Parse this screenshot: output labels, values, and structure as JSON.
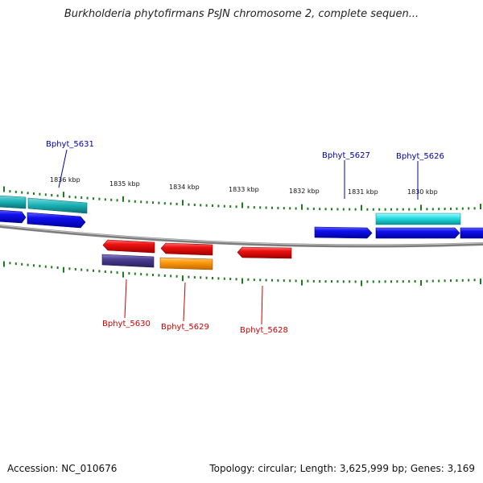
{
  "title": "Burkholderia phytofirmans PsJN chromosome 2, complete sequen...",
  "footer": {
    "accession": "Accession: NC_010676",
    "summary": "Topology: circular; Length: 3,625,999 bp; Genes: 3,169"
  },
  "colors": {
    "backbone": "#8a8a8a",
    "tick": "#1f7a1f",
    "forward_gene": "#0a0ae6",
    "forward_gene_alt": "#22d6dd",
    "reverse_gene": "#ee1111",
    "reverse_gene_alt1": "#4a3d8f",
    "reverse_gene_alt2": "#ff9a0a",
    "forward_label": "#0000aa",
    "reverse_label": "#cc0000"
  },
  "ticks": [
    {
      "label": "1836 kbp"
    },
    {
      "label": "1835 kbp"
    },
    {
      "label": "1834 kbp"
    },
    {
      "label": "1833 kbp"
    },
    {
      "label": "1832 kbp"
    },
    {
      "label": "1831 kbp"
    },
    {
      "label": "1830 kbp"
    }
  ],
  "gene_labels": [
    {
      "name": "Bphyt_5631",
      "strand": "forward"
    },
    {
      "name": "Bphyt_5627",
      "strand": "forward"
    },
    {
      "name": "Bphyt_5626",
      "strand": "forward"
    },
    {
      "name": "Bphyt_5630",
      "strand": "reverse"
    },
    {
      "name": "Bphyt_5629",
      "strand": "reverse"
    },
    {
      "name": "Bphyt_5628",
      "strand": "reverse"
    }
  ]
}
